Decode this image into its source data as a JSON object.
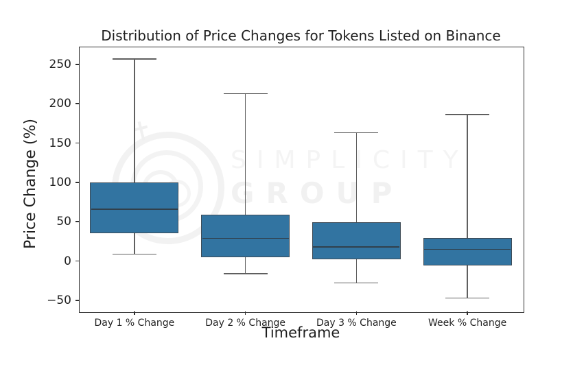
{
  "watermark": {
    "line1": "SIMPLICITY",
    "line2": "GROUP"
  },
  "chart_data": {
    "type": "boxplot",
    "title": "Distribution of Price Changes for Tokens Listed on Binance",
    "xlabel": "Timeframe",
    "ylabel": "Price Change (%)",
    "ylim": [
      -64,
      272.5
    ],
    "yticks": [
      250,
      200,
      150,
      100,
      50,
      0,
      -50
    ],
    "ytick_labels": [
      "250",
      "200",
      "150",
      "100",
      "50",
      "0",
      "−50"
    ],
    "categories": [
      "Day 1 % Change",
      "Day 2 % Change",
      "Day 3 % Change",
      "Week % Change"
    ],
    "boxes": [
      {
        "label": "Day 1 % Change",
        "whisker_low": 9,
        "q1": 35,
        "median": 66,
        "q3": 100,
        "whisker_high": 257
      },
      {
        "label": "Day 2 % Change",
        "whisker_low": -16,
        "q1": 5,
        "median": 29,
        "q3": 59,
        "whisker_high": 213
      },
      {
        "label": "Day 3 % Change",
        "whisker_low": -28,
        "q1": 2,
        "median": 18,
        "q3": 49,
        "whisker_high": 163
      },
      {
        "label": "Week % Change",
        "whisker_low": -47,
        "q1": -6,
        "median": 15,
        "q3": 29,
        "whisker_high": 186
      }
    ],
    "grid": false,
    "legend": null,
    "colors": {
      "box_fill": "#3274a1",
      "box_edge": "#3d4a55",
      "median": "#31404c",
      "whisker": "#5f5f5f",
      "spine": "#2e2e2e",
      "text": "#1f1f1f",
      "watermark_text": "#f3f3f3",
      "watermark_logo": "#f2f2f2"
    }
  }
}
